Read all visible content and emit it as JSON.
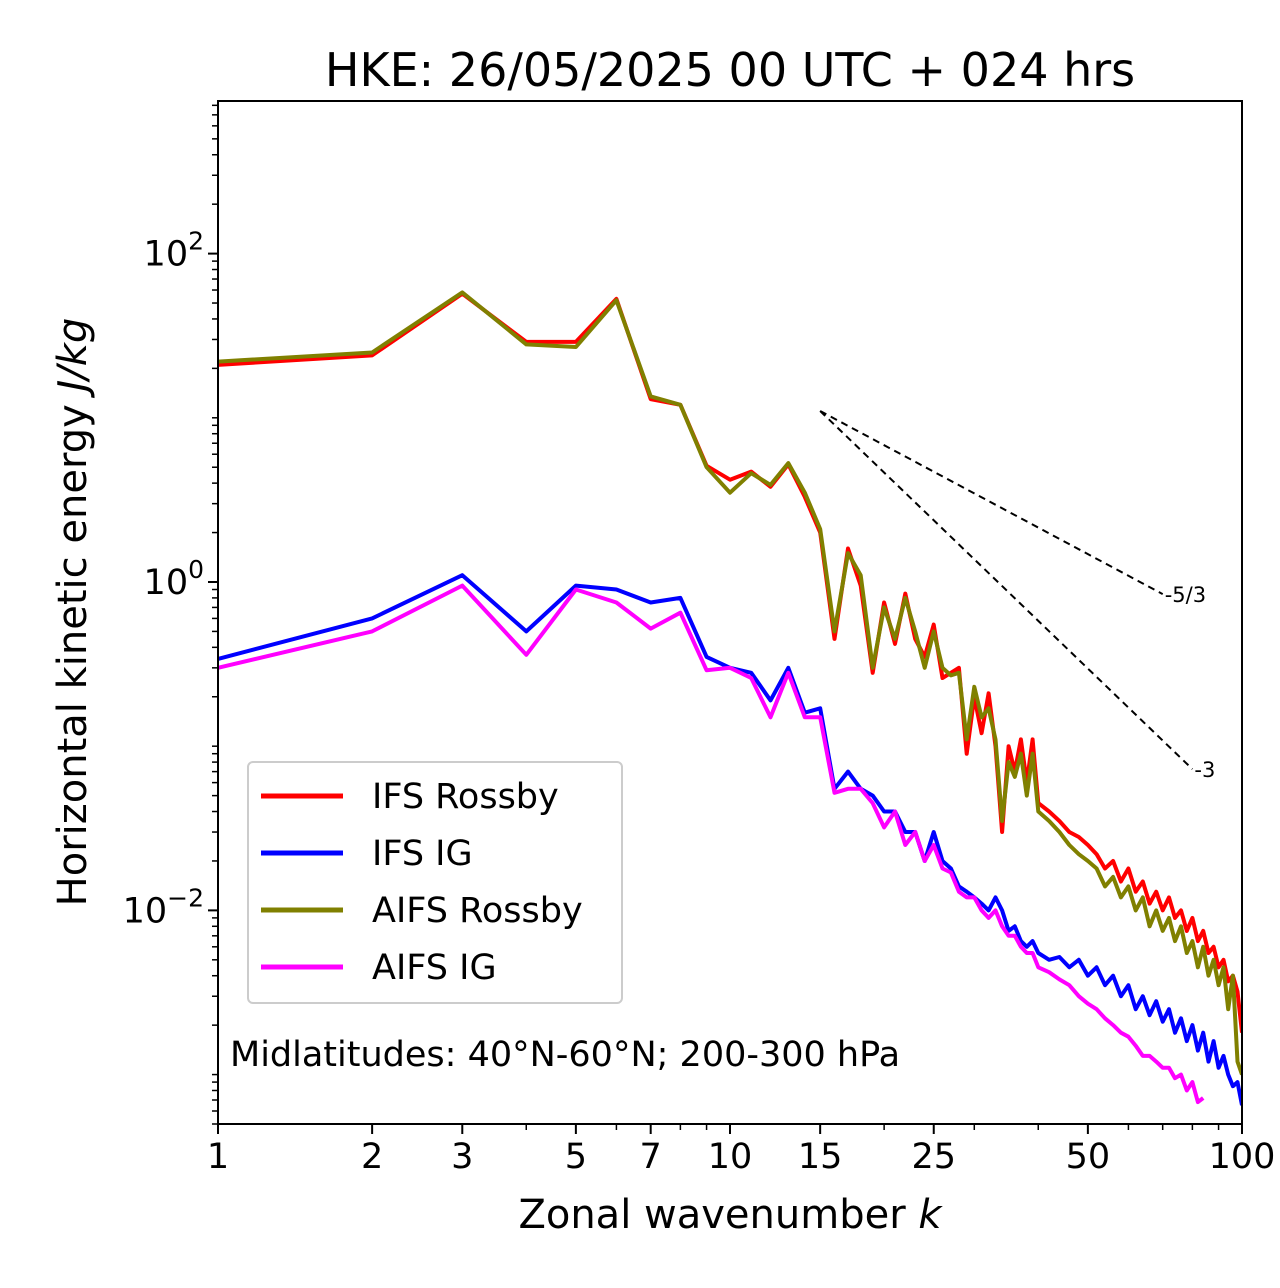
{
  "chart_data": {
    "type": "line",
    "title": "HKE: 26/05/2025 00 UTC + 024 hrs",
    "xlabel_text": "Zonal wavenumber ",
    "xlabel_var": "k",
    "ylabel_text": "Horizontal kinetic energy ",
    "ylabel_var": "J/kg",
    "xscale": "log",
    "yscale": "log",
    "xlim": [
      1,
      100
    ],
    "ylim": [
      0.0005,
      850
    ],
    "xticks": [
      1,
      2,
      3,
      5,
      7,
      10,
      15,
      25,
      50,
      100
    ],
    "xtick_labels": [
      "1",
      "2",
      "3",
      "5",
      "7",
      "10",
      "15",
      "25",
      "50",
      "100"
    ],
    "yticks": [
      0.01,
      1,
      100
    ],
    "ytick_base": [
      "10",
      "10",
      "10"
    ],
    "ytick_exp": [
      "−2",
      "0",
      "2"
    ],
    "grid": false,
    "legend_position": "lower-left",
    "annotation": "Midlatitudes: 40°N-60°N; 200-300 hPa",
    "reference_lines": [
      {
        "label": "-5/3",
        "slope": -1.6667,
        "x_start": 15,
        "x_end": 70,
        "y_start": 11
      },
      {
        "label": "-3",
        "slope": -3,
        "x_start": 15,
        "x_end": 80,
        "y_start": 11
      }
    ],
    "series": [
      {
        "name": "IFS Rossby",
        "color": "#ff0000",
        "x": [
          1,
          2,
          3,
          4,
          5,
          6,
          7,
          8,
          9,
          10,
          11,
          12,
          13,
          14,
          15,
          16,
          17,
          18,
          19,
          20,
          21,
          22,
          23,
          24,
          25,
          26,
          27,
          28,
          29,
          30,
          31,
          32,
          33,
          34,
          35,
          36,
          37,
          38,
          39,
          40,
          42,
          44,
          46,
          48,
          50,
          52,
          54,
          56,
          58,
          60,
          62,
          64,
          66,
          68,
          70,
          72,
          74,
          76,
          78,
          80,
          82,
          84,
          86,
          88,
          90,
          92,
          94,
          96,
          98,
          100
        ],
        "y": [
          21,
          24,
          57,
          29,
          29,
          53,
          13,
          12,
          5.1,
          4.2,
          4.7,
          3.8,
          5.2,
          3.3,
          2.0,
          0.45,
          1.6,
          0.95,
          0.28,
          0.75,
          0.42,
          0.85,
          0.45,
          0.35,
          0.55,
          0.26,
          0.28,
          0.3,
          0.09,
          0.2,
          0.12,
          0.21,
          0.1,
          0.03,
          0.1,
          0.07,
          0.11,
          0.06,
          0.11,
          0.045,
          0.04,
          0.035,
          0.03,
          0.028,
          0.025,
          0.022,
          0.018,
          0.02,
          0.015,
          0.018,
          0.013,
          0.015,
          0.011,
          0.013,
          0.01,
          0.012,
          0.009,
          0.01,
          0.0075,
          0.009,
          0.0065,
          0.0075,
          0.0055,
          0.006,
          0.0045,
          0.005,
          0.0037,
          0.004,
          0.0032,
          0.0018
        ]
      },
      {
        "name": "IFS IG",
        "color": "#0000ff",
        "x": [
          1,
          2,
          3,
          4,
          5,
          6,
          7,
          8,
          9,
          10,
          11,
          12,
          13,
          14,
          15,
          16,
          17,
          18,
          19,
          20,
          21,
          22,
          23,
          24,
          25,
          26,
          27,
          28,
          29,
          30,
          31,
          32,
          33,
          34,
          35,
          36,
          37,
          38,
          39,
          40,
          42,
          44,
          46,
          48,
          50,
          52,
          54,
          56,
          58,
          60,
          62,
          64,
          66,
          68,
          70,
          72,
          74,
          76,
          78,
          80,
          82,
          84,
          86,
          88,
          90,
          92,
          94,
          96,
          98,
          100
        ],
        "y": [
          0.34,
          0.6,
          1.1,
          0.5,
          0.95,
          0.9,
          0.75,
          0.8,
          0.35,
          0.3,
          0.28,
          0.19,
          0.3,
          0.16,
          0.17,
          0.055,
          0.07,
          0.055,
          0.05,
          0.04,
          0.04,
          0.03,
          0.03,
          0.02,
          0.03,
          0.02,
          0.018,
          0.014,
          0.013,
          0.012,
          0.011,
          0.01,
          0.012,
          0.01,
          0.0075,
          0.008,
          0.0065,
          0.006,
          0.0065,
          0.0055,
          0.005,
          0.0052,
          0.0045,
          0.005,
          0.004,
          0.0045,
          0.0035,
          0.004,
          0.003,
          0.0035,
          0.0025,
          0.003,
          0.0023,
          0.0028,
          0.0021,
          0.0025,
          0.0018,
          0.0022,
          0.0016,
          0.002,
          0.0014,
          0.0018,
          0.0012,
          0.0016,
          0.0011,
          0.0013,
          0.001,
          0.00085,
          0.0009,
          0.00065
        ]
      },
      {
        "name": "AIFS Rossby",
        "color": "#808000",
        "x": [
          1,
          2,
          3,
          4,
          5,
          6,
          7,
          8,
          9,
          10,
          11,
          12,
          13,
          14,
          15,
          16,
          17,
          18,
          19,
          20,
          21,
          22,
          23,
          24,
          25,
          26,
          27,
          28,
          29,
          30,
          31,
          32,
          33,
          34,
          35,
          36,
          37,
          38,
          39,
          40,
          42,
          44,
          46,
          48,
          50,
          52,
          54,
          56,
          58,
          60,
          62,
          64,
          66,
          68,
          70,
          72,
          74,
          76,
          78,
          80,
          82,
          84,
          86,
          88,
          90,
          92,
          94,
          96,
          98,
          100
        ],
        "y": [
          22,
          25,
          58,
          28,
          27,
          52,
          13.5,
          12,
          5.0,
          3.5,
          4.6,
          3.9,
          5.3,
          3.5,
          2.1,
          0.5,
          1.5,
          1.1,
          0.3,
          0.7,
          0.45,
          0.8,
          0.5,
          0.3,
          0.5,
          0.3,
          0.27,
          0.28,
          0.11,
          0.23,
          0.15,
          0.17,
          0.11,
          0.035,
          0.08,
          0.065,
          0.09,
          0.05,
          0.09,
          0.04,
          0.035,
          0.03,
          0.025,
          0.022,
          0.02,
          0.018,
          0.014,
          0.016,
          0.012,
          0.014,
          0.01,
          0.012,
          0.008,
          0.01,
          0.0075,
          0.009,
          0.0065,
          0.008,
          0.0055,
          0.0065,
          0.0045,
          0.006,
          0.004,
          0.005,
          0.0035,
          0.0045,
          0.0025,
          0.004,
          0.0012,
          0.001
        ]
      },
      {
        "name": "AIFS IG",
        "color": "#ff00ff",
        "x": [
          1,
          2,
          3,
          4,
          5,
          6,
          7,
          8,
          9,
          10,
          11,
          12,
          13,
          14,
          15,
          16,
          17,
          18,
          19,
          20,
          21,
          22,
          23,
          24,
          25,
          26,
          27,
          28,
          29,
          30,
          31,
          32,
          33,
          34,
          35,
          36,
          37,
          38,
          39,
          40,
          42,
          44,
          46,
          48,
          50,
          52,
          54,
          56,
          58,
          60,
          62,
          64,
          66,
          68,
          70,
          72,
          74,
          76,
          78,
          80,
          82,
          84
        ],
        "y": [
          0.3,
          0.5,
          0.95,
          0.36,
          0.9,
          0.75,
          0.52,
          0.65,
          0.29,
          0.3,
          0.26,
          0.15,
          0.28,
          0.15,
          0.15,
          0.052,
          0.055,
          0.055,
          0.045,
          0.032,
          0.04,
          0.025,
          0.03,
          0.02,
          0.025,
          0.018,
          0.017,
          0.013,
          0.012,
          0.012,
          0.01,
          0.009,
          0.01,
          0.008,
          0.007,
          0.007,
          0.006,
          0.0055,
          0.0055,
          0.0045,
          0.0042,
          0.0038,
          0.0035,
          0.003,
          0.0027,
          0.0025,
          0.0022,
          0.002,
          0.0018,
          0.0017,
          0.0015,
          0.0013,
          0.0013,
          0.0012,
          0.0011,
          0.0011,
          0.00095,
          0.001,
          0.0008,
          0.0009,
          0.00068,
          0.00072
        ]
      }
    ]
  }
}
